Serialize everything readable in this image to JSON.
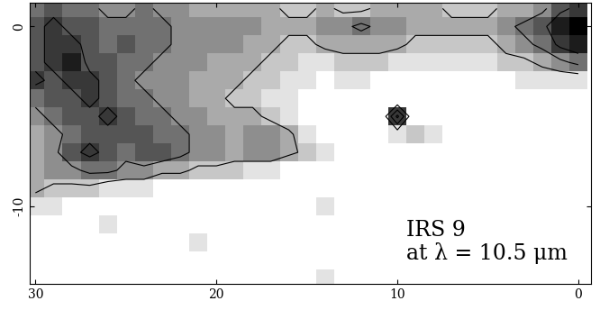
{
  "chart_data": {
    "type": "heatmap",
    "annotation": "IRS 9\nat λ = 10.5 μm",
    "x": [
      30,
      29,
      28,
      27,
      26,
      25,
      24,
      23,
      22,
      21,
      20,
      19,
      18,
      17,
      16,
      15,
      14,
      13,
      12,
      11,
      10,
      9,
      8,
      7,
      6,
      5,
      4,
      3,
      2,
      1,
      0
    ],
    "y": [
      1,
      0,
      -1,
      -2,
      -3,
      -4,
      -5,
      -6,
      -7,
      -8,
      -9,
      -10,
      -11,
      -12,
      -13,
      -14
    ],
    "cells": [
      [
        5,
        6,
        5,
        5,
        4,
        4,
        5,
        4,
        4,
        3,
        3,
        3,
        3,
        3,
        2,
        2,
        3,
        2,
        2,
        3,
        3,
        3,
        3,
        2,
        2,
        2,
        3,
        3,
        4,
        6,
        7
      ],
      [
        6,
        7,
        6,
        6,
        5,
        5,
        5,
        5,
        4,
        4,
        4,
        4,
        4,
        3,
        3,
        3,
        4,
        4,
        5,
        4,
        4,
        3,
        3,
        3,
        3,
        3,
        4,
        5,
        6,
        8,
        9
      ],
      [
        6,
        7,
        7,
        6,
        5,
        6,
        5,
        5,
        4,
        4,
        4,
        4,
        3,
        3,
        2,
        2,
        3,
        3,
        3,
        3,
        3,
        2,
        2,
        2,
        2,
        2,
        3,
        4,
        5,
        7,
        8
      ],
      [
        6,
        7,
        8,
        6,
        6,
        5,
        5,
        4,
        4,
        4,
        3,
        3,
        3,
        2,
        2,
        1,
        1,
        2,
        2,
        2,
        1,
        1,
        1,
        1,
        1,
        1,
        2,
        2,
        3,
        4,
        5
      ],
      [
        7,
        6,
        7,
        7,
        6,
        5,
        4,
        4,
        4,
        3,
        3,
        3,
        2,
        2,
        1,
        1,
        0,
        1,
        1,
        0,
        0,
        0,
        0,
        0,
        0,
        0,
        0,
        1,
        1,
        1,
        1
      ],
      [
        5,
        6,
        6,
        7,
        6,
        5,
        5,
        4,
        4,
        3,
        3,
        2,
        2,
        1,
        1,
        0,
        0,
        0,
        0,
        0,
        0,
        0,
        0,
        0,
        0,
        0,
        0,
        0,
        0,
        0,
        0
      ],
      [
        4,
        5,
        6,
        6,
        7,
        6,
        5,
        5,
        4,
        4,
        3,
        3,
        3,
        2,
        1,
        0,
        0,
        0,
        0,
        0,
        7,
        0,
        0,
        0,
        0,
        0,
        0,
        0,
        0,
        0,
        0
      ],
      [
        3,
        4,
        5,
        6,
        6,
        6,
        6,
        5,
        5,
        4,
        4,
        3,
        4,
        4,
        3,
        1,
        0,
        0,
        0,
        0,
        1,
        2,
        1,
        0,
        0,
        0,
        0,
        0,
        0,
        0,
        0
      ],
      [
        3,
        4,
        6,
        7,
        6,
        5,
        6,
        6,
        5,
        4,
        4,
        3,
        4,
        4,
        3,
        2,
        1,
        0,
        0,
        0,
        0,
        0,
        0,
        0,
        0,
        0,
        0,
        0,
        0,
        0,
        0
      ],
      [
        3,
        4,
        4,
        5,
        5,
        4,
        4,
        3,
        3,
        2,
        2,
        2,
        1,
        1,
        0,
        0,
        0,
        0,
        0,
        0,
        0,
        0,
        0,
        0,
        0,
        0,
        0,
        0,
        0,
        0,
        0
      ],
      [
        3,
        2,
        2,
        2,
        1,
        1,
        1,
        0,
        0,
        0,
        0,
        0,
        0,
        0,
        0,
        0,
        0,
        0,
        0,
        0,
        0,
        0,
        0,
        0,
        0,
        0,
        0,
        0,
        0,
        0,
        0
      ],
      [
        1,
        1,
        0,
        0,
        0,
        0,
        0,
        0,
        0,
        0,
        0,
        0,
        0,
        0,
        0,
        0,
        1,
        0,
        0,
        0,
        0,
        0,
        0,
        0,
        0,
        0,
        0,
        0,
        0,
        0,
        0
      ],
      [
        0,
        0,
        0,
        0,
        1,
        0,
        0,
        0,
        0,
        0,
        0,
        0,
        0,
        0,
        0,
        0,
        0,
        0,
        0,
        0,
        0,
        0,
        0,
        0,
        0,
        0,
        0,
        0,
        0,
        0,
        0
      ],
      [
        0,
        0,
        0,
        0,
        0,
        0,
        0,
        0,
        0,
        1,
        0,
        0,
        0,
        0,
        0,
        0,
        0,
        0,
        0,
        0,
        0,
        0,
        0,
        0,
        0,
        0,
        0,
        0,
        0,
        0,
        0
      ],
      [
        0,
        0,
        0,
        0,
        0,
        0,
        0,
        0,
        0,
        0,
        0,
        0,
        0,
        0,
        0,
        0,
        0,
        0,
        0,
        0,
        0,
        0,
        0,
        0,
        0,
        0,
        0,
        0,
        0,
        0,
        0
      ],
      [
        0,
        0,
        0,
        0,
        0,
        0,
        0,
        0,
        0,
        0,
        0,
        0,
        0,
        0,
        0,
        0,
        1,
        0,
        0,
        0,
        0,
        0,
        0,
        0,
        0,
        0,
        0,
        0,
        0,
        0,
        0
      ]
    ],
    "color_range": [
      0,
      9
    ],
    "contour_levels": [
      2.5,
      4.5,
      6.5
    ],
    "xlim": [
      30.3,
      -0.7
    ],
    "ylim": [
      -14.3,
      1.3
    ],
    "xticks": [
      30,
      20,
      10,
      0
    ],
    "yticks": [
      0,
      -10
    ]
  }
}
